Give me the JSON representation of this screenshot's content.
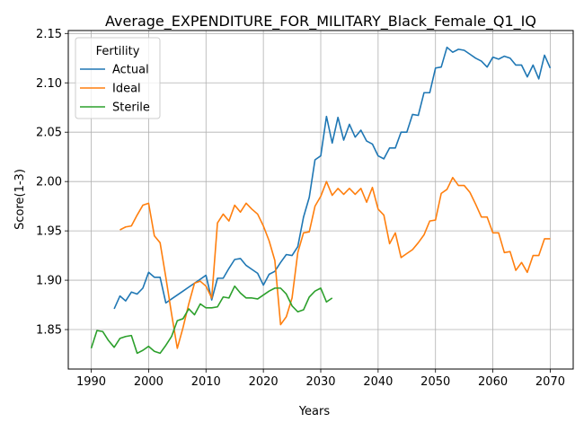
{
  "chart_data": {
    "type": "line",
    "title": "Average_EXPENDITURE_FOR_MILITARY_Black_Female_Q1_IQ",
    "xlabel": "Years",
    "ylabel": "Score(1-3)",
    "xlim": [
      1986,
      2074
    ],
    "ylim": [
      1.81,
      2.153
    ],
    "xticks": [
      1990,
      2000,
      2010,
      2020,
      2030,
      2040,
      2050,
      2060,
      2070
    ],
    "yticks": [
      1.85,
      1.9,
      1.95,
      2.0,
      2.05,
      2.1,
      2.15
    ],
    "ytick_labels": [
      "1.85",
      "1.90",
      "1.95",
      "2.00",
      "2.05",
      "2.10",
      "2.15"
    ],
    "grid": true,
    "legend": {
      "title": "Fertility",
      "position": "upper-left"
    },
    "series": [
      {
        "name": "Actual",
        "color": "#1f77b4",
        "x": [
          1994,
          1995,
          1996,
          1997,
          1998,
          1999,
          2000,
          2001,
          2002,
          2003,
          2004,
          2005,
          2006,
          2007,
          2008,
          2009,
          2010,
          2011,
          2012,
          2013,
          2014,
          2015,
          2016,
          2017,
          2018,
          2019,
          2020,
          2021,
          2022,
          2023,
          2024,
          2025,
          2026,
          2027,
          2028,
          2029,
          2030,
          2031,
          2032,
          2033,
          2034,
          2035,
          2036,
          2037,
          2038,
          2039,
          2040,
          2041,
          2042,
          2043,
          2044,
          2045,
          2046,
          2047,
          2048,
          2049,
          2050,
          2051,
          2052,
          2053,
          2054,
          2055,
          2056,
          2057,
          2058,
          2059,
          2060,
          2061,
          2062,
          2063,
          2064,
          2065,
          2066,
          2067,
          2068,
          2069,
          2070
        ],
        "values": [
          1.871,
          1.884,
          1.879,
          1.888,
          1.886,
          1.892,
          1.908,
          1.903,
          1.903,
          1.877,
          1.881,
          1.885,
          1.889,
          1.893,
          1.897,
          1.901,
          1.905,
          1.88,
          1.902,
          1.902,
          1.912,
          1.921,
          1.922,
          1.915,
          1.911,
          1.907,
          1.895,
          1.906,
          1.909,
          1.918,
          1.926,
          1.925,
          1.934,
          1.964,
          1.984,
          2.022,
          2.026,
          2.066,
          2.039,
          2.065,
          2.042,
          2.058,
          2.045,
          2.052,
          2.041,
          2.038,
          2.026,
          2.023,
          2.034,
          2.034,
          2.05,
          2.05,
          2.068,
          2.067,
          2.09,
          2.09,
          2.115,
          2.116,
          2.136,
          2.131,
          2.134,
          2.133,
          2.129,
          2.125,
          2.122,
          2.116,
          2.126,
          2.124,
          2.127,
          2.125,
          2.118,
          2.118,
          2.106,
          2.118,
          2.104,
          2.128,
          2.115
        ]
      },
      {
        "name": "Ideal",
        "color": "#ff7f0e",
        "x": [
          1995,
          1996,
          1997,
          1998,
          1999,
          2000,
          2001,
          2002,
          2003,
          2004,
          2005,
          2006,
          2007,
          2008,
          2009,
          2010,
          2011,
          2012,
          2013,
          2014,
          2015,
          2016,
          2017,
          2018,
          2019,
          2020,
          2021,
          2022,
          2023,
          2024,
          2025,
          2026,
          2027,
          2028,
          2029,
          2030,
          2031,
          2032,
          2033,
          2034,
          2035,
          2036,
          2037,
          2038,
          2039,
          2040,
          2041,
          2042,
          2043,
          2044,
          2045,
          2046,
          2047,
          2048,
          2049,
          2050,
          2051,
          2052,
          2053,
          2054,
          2055,
          2056,
          2057,
          2058,
          2059,
          2060,
          2061,
          2062,
          2063,
          2064,
          2065,
          2066,
          2067,
          2068,
          2069,
          2070
        ],
        "values": [
          1.951,
          1.954,
          1.955,
          1.966,
          1.976,
          1.978,
          1.945,
          1.938,
          1.903,
          1.866,
          1.831,
          1.852,
          1.876,
          1.897,
          1.899,
          1.894,
          1.882,
          1.958,
          1.967,
          1.96,
          1.976,
          1.969,
          1.978,
          1.972,
          1.967,
          1.955,
          1.94,
          1.92,
          1.855,
          1.863,
          1.882,
          1.928,
          1.948,
          1.949,
          1.975,
          1.985,
          2.0,
          1.986,
          1.993,
          1.987,
          1.993,
          1.987,
          1.993,
          1.979,
          1.994,
          1.972,
          1.966,
          1.937,
          1.948,
          1.923,
          1.927,
          1.931,
          1.938,
          1.946,
          1.96,
          1.961,
          1.988,
          1.992,
          2.004,
          1.996,
          1.996,
          1.989,
          1.977,
          1.964,
          1.964,
          1.948,
          1.948,
          1.928,
          1.929,
          1.91,
          1.918,
          1.908,
          1.925,
          1.925,
          1.942,
          1.942
        ]
      },
      {
        "name": "Sterile",
        "color": "#2ca02c",
        "x": [
          1990,
          1991,
          1992,
          1993,
          1994,
          1995,
          1996,
          1997,
          1998,
          1999,
          2000,
          2001,
          2002,
          2003,
          2004,
          2005,
          2006,
          2007,
          2008,
          2009,
          2010,
          2011,
          2012,
          2013,
          2014,
          2015,
          2016,
          2017,
          2018,
          2019,
          2020,
          2021,
          2022,
          2023,
          2024,
          2025,
          2026,
          2027,
          2028,
          2029,
          2030,
          2031,
          2032
        ],
        "values": [
          1.831,
          1.849,
          1.848,
          1.839,
          1.832,
          1.841,
          1.843,
          1.844,
          1.826,
          1.829,
          1.833,
          1.828,
          1.826,
          1.834,
          1.843,
          1.859,
          1.861,
          1.871,
          1.865,
          1.876,
          1.872,
          1.872,
          1.873,
          1.883,
          1.882,
          1.894,
          1.887,
          1.882,
          1.882,
          1.881,
          1.885,
          1.889,
          1.892,
          1.892,
          1.886,
          1.874,
          1.868,
          1.87,
          1.883,
          1.889,
          1.892,
          1.878,
          1.882
        ]
      }
    ]
  }
}
